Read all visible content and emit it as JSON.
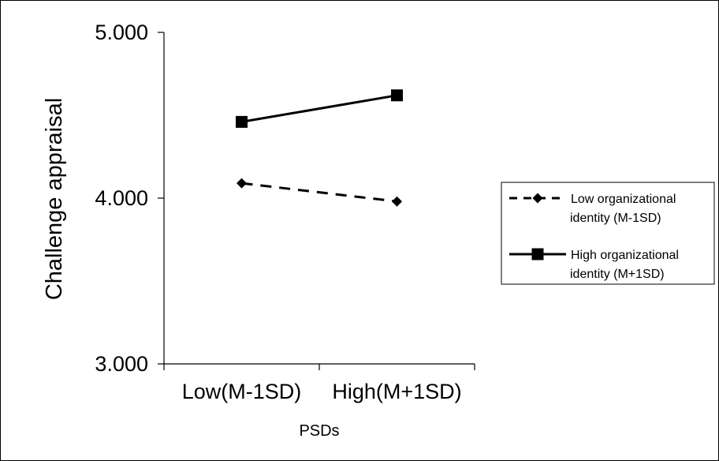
{
  "chart_data": {
    "type": "line",
    "xlabel": "PSDs",
    "ylabel": "Challenge appraisal",
    "categories": [
      "Low(M-1SD)",
      "High(M+1SD)"
    ],
    "ylim": [
      3.0,
      5.0
    ],
    "yticks": [
      "3.000",
      "4.000",
      "5.000"
    ],
    "grid": false,
    "legend_position": "right",
    "series": [
      {
        "name_lines": [
          "Low organizational",
          "identity (M-1SD)"
        ],
        "values": [
          4.09,
          3.98
        ],
        "line_style": "dashed",
        "marker": "diamond",
        "color": "#000000"
      },
      {
        "name_lines": [
          "High organizational",
          "identity (M+1SD)"
        ],
        "values": [
          4.46,
          4.62
        ],
        "line_style": "solid",
        "marker": "square",
        "color": "#000000"
      }
    ]
  }
}
